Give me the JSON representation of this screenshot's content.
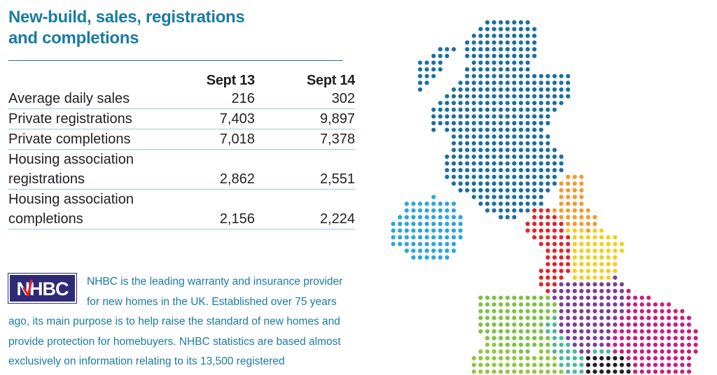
{
  "title": {
    "line1": "New-build, sales, registrations",
    "line2": "and completions"
  },
  "table": {
    "columns": [
      "Sept 13",
      "Sept 14"
    ],
    "rows": [
      {
        "label": [
          "Average daily sales"
        ],
        "sept13": "216",
        "sept14": "302"
      },
      {
        "label": [
          "Private registrations"
        ],
        "sept13": "7,403",
        "sept14": "9,897"
      },
      {
        "label": [
          "Private completions"
        ],
        "sept13": "7,018",
        "sept14": "7,378"
      },
      {
        "label": [
          "Housing association",
          "registrations"
        ],
        "sept13": "2,862",
        "sept14": "2,551"
      },
      {
        "label": [
          "Housing association",
          "completions"
        ],
        "sept13": "2,156",
        "sept14": "2,224"
      }
    ]
  },
  "logo": {
    "text": "NHBC",
    "background": "#2d2a77",
    "accent": "#e4232d"
  },
  "about": {
    "lines": [
      "NHBC is the leading warranty and insurance provider",
      "for new homes in the UK. Established over 75 years",
      "ago, its main purpose is to help raise the standard of new homes and",
      "provide protection for homebuyers. NHBC statistics are based almost",
      "exclusively on information relating to its 13,500 registered"
    ]
  },
  "map": {
    "icon": "uk-regions-dot-map",
    "colors": {
      "scotland": "#1a6fa0",
      "northern_ireland": "#2aa6df",
      "north_east": "#f39a2b",
      "north_west": "#e4232d",
      "yorkshire": "#f2cf1a",
      "midlands": "#7b3f99",
      "east": "#c81e80",
      "wales": "#7dc142",
      "south_west": "#8fc63f",
      "south": "#47b89a",
      "london": "#231f20"
    }
  }
}
